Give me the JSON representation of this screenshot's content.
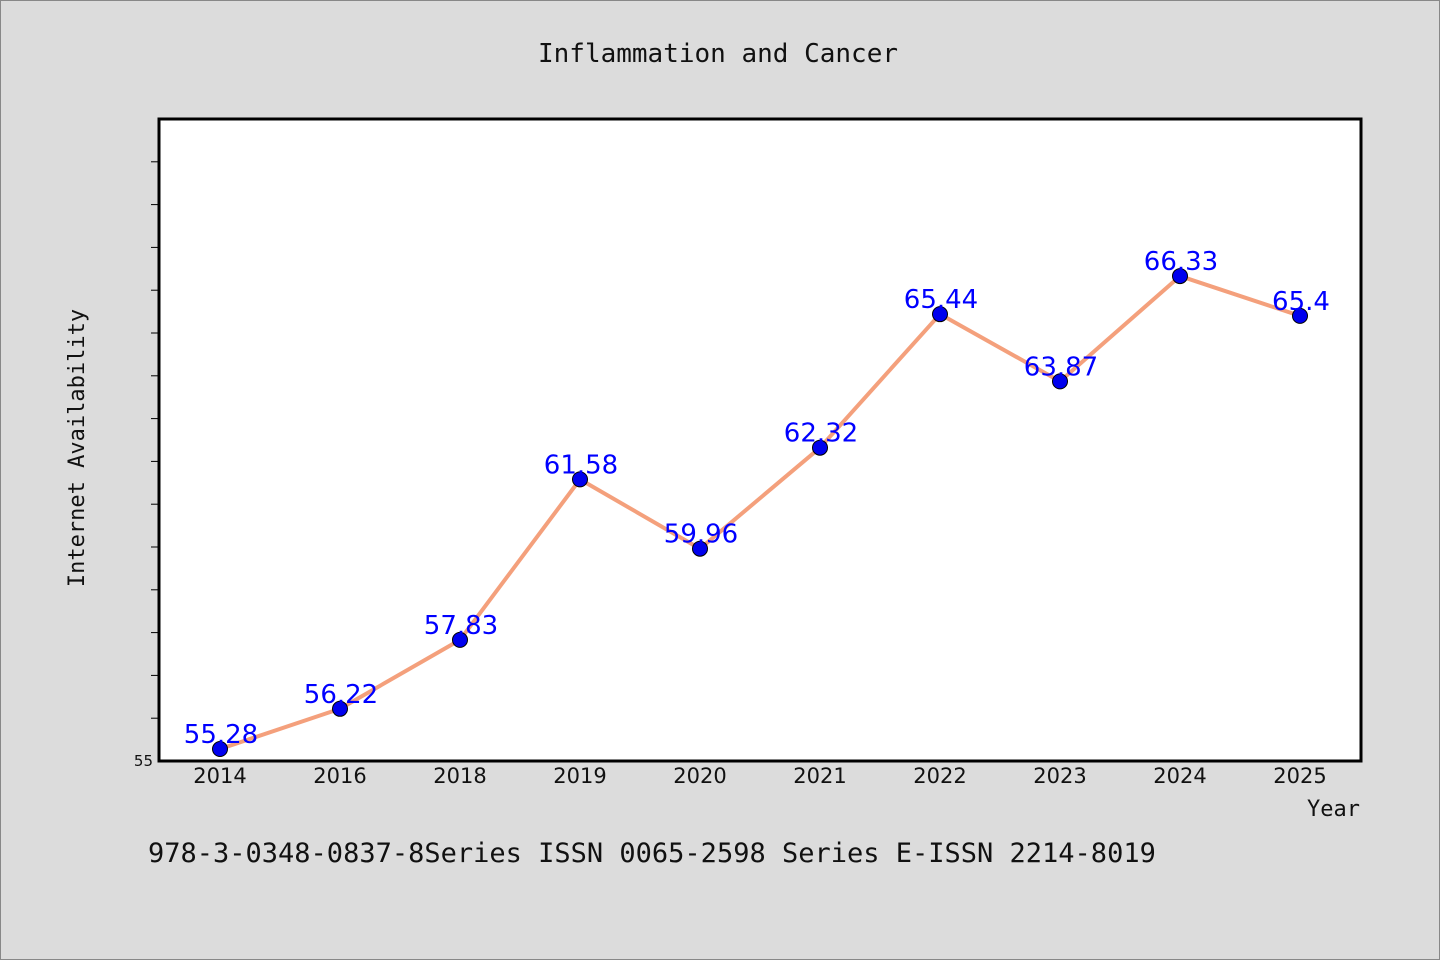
{
  "chart_data": {
    "type": "line",
    "title": "Inflammation and Cancer",
    "xlabel": "Year",
    "ylabel": "Internet Availability",
    "categories": [
      "2014",
      "2016",
      "2018",
      "2019",
      "2020",
      "2021",
      "2022",
      "2023",
      "2024",
      "2025"
    ],
    "series": [
      {
        "values": [
          55.28,
          56.22,
          57.83,
          61.58,
          59.96,
          62.32,
          65.44,
          63.87,
          66.33,
          65.4
        ],
        "labels": [
          "55.28",
          "56.22",
          "57.83",
          "61.58",
          "59.96",
          "62.32",
          "65.44",
          "63.87",
          "66.33",
          "65.4"
        ]
      }
    ],
    "ylim": [
      55,
      70
    ],
    "y_tick_labels": [
      "55"
    ],
    "grid": false,
    "footer": "978-3-0348-0837-8Series ISSN 0065-2598 Series E-ISSN 2214-8019",
    "colors": {
      "line": "#f4a07c",
      "marker": "#0000ee",
      "label": "#0000ff",
      "plot_bg": "#ffffff",
      "page_bg": "#dcdcdc"
    }
  }
}
